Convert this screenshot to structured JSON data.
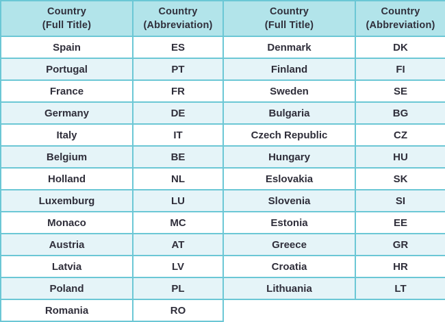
{
  "colors": {
    "border": "#6bc7d5",
    "header_bg": "#b2e4ea",
    "row_bg": "#ffffff",
    "row_alt_bg": "#e5f4f8",
    "text": "#2f2e3a"
  },
  "table": {
    "headers": [
      {
        "line1": "Country",
        "line2": "(Full Title)"
      },
      {
        "line1": "Country",
        "line2": "(Abbreviation)"
      },
      {
        "line1": "Country",
        "line2": "(Full Title)"
      },
      {
        "line1": "Country",
        "line2": "(Abbreviation)"
      }
    ],
    "rows": [
      [
        "Spain",
        "ES",
        "Denmark",
        "DK"
      ],
      [
        "Portugal",
        "PT",
        "Finland",
        "FI"
      ],
      [
        "France",
        "FR",
        "Sweden",
        "SE"
      ],
      [
        "Germany",
        "DE",
        "Bulgaria",
        "BG"
      ],
      [
        "Italy",
        "IT",
        "Czech Republic",
        "CZ"
      ],
      [
        "Belgium",
        "BE",
        "Hungary",
        "HU"
      ],
      [
        "Holland",
        "NL",
        "Eslovakia",
        "SK"
      ],
      [
        "Luxemburg",
        "LU",
        "Slovenia",
        "SI"
      ],
      [
        "Monaco",
        "MC",
        "Estonia",
        "EE"
      ],
      [
        "Austria",
        "AT",
        "Greece",
        "GR"
      ],
      [
        "Latvia",
        "LV",
        "Croatia",
        "HR"
      ],
      [
        "Poland",
        "PL",
        "Lithuania",
        "LT"
      ],
      [
        "Romania",
        "RO",
        null,
        null
      ]
    ]
  }
}
